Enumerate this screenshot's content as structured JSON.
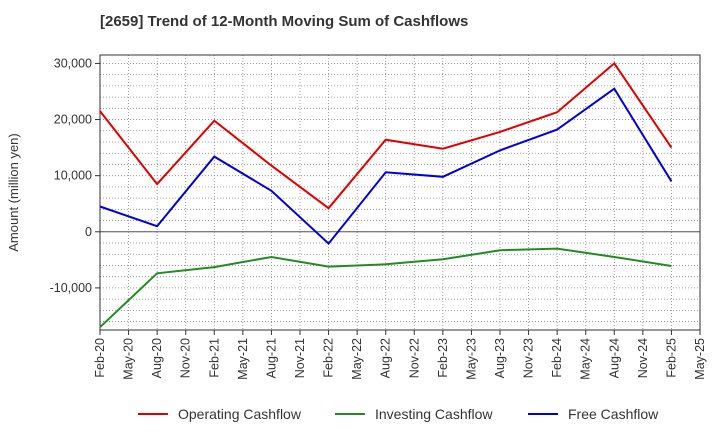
{
  "chart_data": {
    "type": "line",
    "title": "[2659]  Trend of 12-Month Moving Sum of Cashflows",
    "ylabel": "Amount (million yen)",
    "xlabel": "",
    "ylim": [
      -17500,
      31500
    ],
    "yticks": [
      {
        "value": 30000,
        "label": "30,000"
      },
      {
        "value": 20000,
        "label": "20,000"
      },
      {
        "value": 10000,
        "label": "10,000"
      },
      {
        "value": 0,
        "label": "0"
      },
      {
        "value": -10000,
        "label": "-10,000"
      }
    ],
    "x_tick_labels": [
      "Feb-20",
      "May-20",
      "Aug-20",
      "Nov-20",
      "Feb-21",
      "May-21",
      "Aug-21",
      "Nov-21",
      "Feb-22",
      "May-22",
      "Aug-22",
      "Nov-22",
      "Feb-23",
      "May-23",
      "Aug-23",
      "Nov-23",
      "Feb-24",
      "May-24",
      "Aug-24",
      "Nov-24",
      "Feb-25",
      "May-25"
    ],
    "categories": [
      "Feb-20",
      "Aug-20",
      "Feb-21",
      "Aug-21",
      "Feb-22",
      "Aug-22",
      "Feb-23",
      "Aug-23",
      "Feb-24",
      "Aug-24",
      "Feb-25"
    ],
    "grid": true,
    "legend_position": "bottom",
    "series": [
      {
        "name": "Operating Cashflow",
        "color": "#e00000",
        "values": [
          21500,
          8500,
          19800,
          11800,
          4200,
          16400,
          14800,
          17800,
          21300,
          30000,
          15000
        ]
      },
      {
        "name": "Investing Cashflow",
        "color": "#228b22",
        "values": [
          -17000,
          -7400,
          -6300,
          -4500,
          -6200,
          -5800,
          -4900,
          -3300,
          -3000,
          -4500,
          -6100
        ]
      },
      {
        "name": "Free Cashflow",
        "color": "#0000dd",
        "values": [
          4500,
          1000,
          13400,
          7300,
          -2100,
          10600,
          9800,
          14500,
          18200,
          25500,
          9000
        ]
      }
    ]
  }
}
